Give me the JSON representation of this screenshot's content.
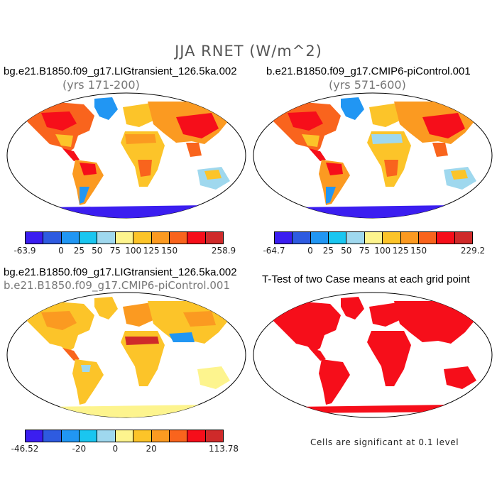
{
  "figure_title": "JJA RNET (W/m^2)",
  "panels": [
    {
      "title": "bg.e21.B1850.f09_g17.LIGtransient_126.5ka.002",
      "subtitle": "(yrs 171-200)"
    },
    {
      "title": "b.e21.B1850.f09_g17.CMIP6-piControl.001",
      "subtitle": "(yrs 571-600)"
    },
    {
      "title": "bg.e21.B1850.f09_g17.LIGtransient_126.5ka.002",
      "subtitle": "b.e21.B1850.f09_g17.CMIP6-piControl.001"
    },
    {
      "title": "T-Test of two Case means at each grid point",
      "subtitle": ""
    }
  ],
  "colorbars": [
    {
      "colors": [
        "#3b1ef0",
        "#2e5be0",
        "#2196f3",
        "#1ac6f0",
        "#9fd8ee",
        "#fdf48e",
        "#fcc429",
        "#fb9a21",
        "#f9641d",
        "#f60e1a",
        "#cf2a2a"
      ],
      "labels": [
        "-63.9",
        "0",
        "25",
        "50",
        "75",
        "100",
        "125",
        "150",
        "258.9"
      ]
    },
    {
      "colors": [
        "#3b1ef0",
        "#2e5be0",
        "#2196f3",
        "#1ac6f0",
        "#9fd8ee",
        "#fdf48e",
        "#fcc429",
        "#fb9a21",
        "#f9641d",
        "#f60e1a",
        "#cf2a2a"
      ],
      "labels": [
        "-64.7",
        "0",
        "25",
        "50",
        "75",
        "100",
        "125",
        "150",
        "229.2"
      ]
    },
    {
      "colors": [
        "#3b1ef0",
        "#2e5be0",
        "#2196f3",
        "#1ac6f0",
        "#9fd8ee",
        "#fdf48e",
        "#fcc429",
        "#fb9a21",
        "#f9641d",
        "#f60e1a",
        "#cf2a2a"
      ],
      "labels": [
        "-46.52",
        "-20",
        "0",
        "20",
        "113.78"
      ]
    }
  ],
  "footnote": "Cells are significant at 0.1 level"
}
